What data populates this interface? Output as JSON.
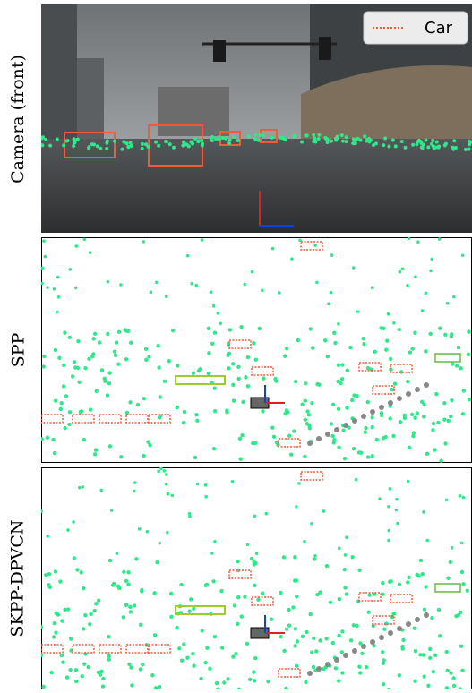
{
  "panels": [
    {
      "label": "Camera (front)",
      "legend": "Car"
    },
    {
      "label": "SPP"
    },
    {
      "label": "SKPP-DPVCN"
    }
  ]
}
